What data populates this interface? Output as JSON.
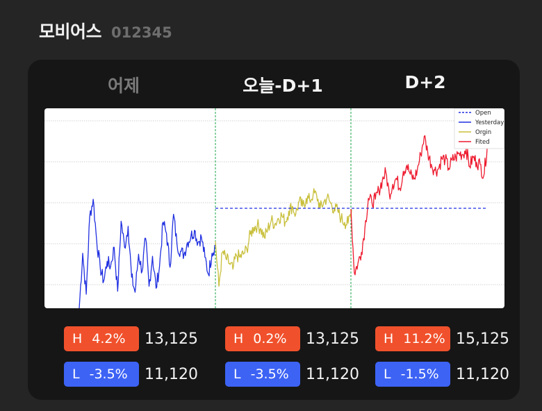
{
  "header": {
    "name": "모비어스",
    "code": "012345"
  },
  "tabs": [
    {
      "label": "어제",
      "active": false
    },
    {
      "label": "오늘-D+1",
      "active": true
    },
    {
      "label": "D+2",
      "active": true
    }
  ],
  "chart_data": {
    "type": "line",
    "title": "",
    "xlabel": "",
    "ylabel": "",
    "legend_position": "top-right",
    "grid": "horizontal",
    "legend": [
      {
        "label": "Open",
        "color": "#1f2fe0",
        "style": "dashed"
      },
      {
        "label": "Yesterday",
        "color": "#1f2fe0",
        "style": "solid"
      },
      {
        "label": "Orgin",
        "color": "#c8bf3a",
        "style": "solid"
      },
      {
        "label": "Fited",
        "color": "#ee1a2e",
        "style": "solid"
      }
    ],
    "series": [
      {
        "name": "Yesterday",
        "color": "#1f2fe0",
        "values": [
          -6,
          -0.5,
          -4.6,
          3.2,
          4.9,
          0.8,
          -1.9,
          -3.3,
          -1.3,
          -1.8,
          0.1,
          -4.3,
          2.7,
          0.1,
          2.2,
          -2.9,
          -4.4,
          -0.6,
          -2.3,
          1.0,
          -3.8,
          -0.8,
          -4.0,
          -1.8,
          2.6,
          1.5,
          -1.9,
          3.4,
          0.4,
          -0.3,
          -0.6,
          0.6,
          1.2,
          1.8,
          0.6,
          1.1,
          -0.9,
          -2.6,
          -0.5,
          0.3
        ]
      },
      {
        "name": "Orgin",
        "color": "#c8bf3a",
        "values": [
          0.7,
          -3.8,
          -0.4,
          -1.0,
          -1.5,
          -2.1,
          -0.7,
          -0.9,
          -0.6,
          -0.1,
          1.4,
          2.1,
          2.3,
          2.0,
          1.1,
          1.9,
          2.8,
          2.4,
          3.0,
          3.3,
          2.6,
          3.7,
          4.2,
          3.4,
          4.7,
          4.2,
          5.0,
          4.8,
          5.4,
          5.3,
          4.0,
          4.6,
          5.1,
          4.5,
          3.9,
          3.8,
          3.0,
          2.6,
          2.5,
          3.9
        ]
      },
      {
        "name": "Fited",
        "color": "#ee1a2e",
        "values": [
          3.9,
          -2.5,
          -1.5,
          -0.4,
          2.0,
          5.0,
          4.6,
          4.9,
          5.8,
          6.8,
          7.6,
          5.4,
          6.4,
          7.0,
          6.0,
          7.7,
          8.3,
          7.4,
          6.9,
          7.8,
          9.4,
          11.2,
          9.6,
          8.4,
          7.8,
          7.9,
          9.0,
          8.9,
          8.0,
          8.8,
          9.1,
          9.5,
          9.4,
          9.9,
          8.2,
          9.1,
          8.6,
          8.4,
          7.2,
          10.0
        ]
      }
    ],
    "open_level": 4.0,
    "ylim": [
      -6,
      14
    ]
  },
  "stats": [
    {
      "high_pct": "4.2%",
      "high_price": "13,125",
      "low_pct": "-3.5%",
      "low_price": "11,120"
    },
    {
      "high_pct": "0.2%",
      "high_price": "13,125",
      "low_pct": "-3.5%",
      "low_price": "11,120"
    },
    {
      "high_pct": "11.2%",
      "high_price": "15,125",
      "low_pct": "-1.5%",
      "low_price": "11,120"
    }
  ],
  "labels": {
    "high": "H",
    "low": "L"
  },
  "colors": {
    "high": "#f0512c",
    "low": "#3d63f5",
    "background": "#252525",
    "card": "#161616"
  }
}
